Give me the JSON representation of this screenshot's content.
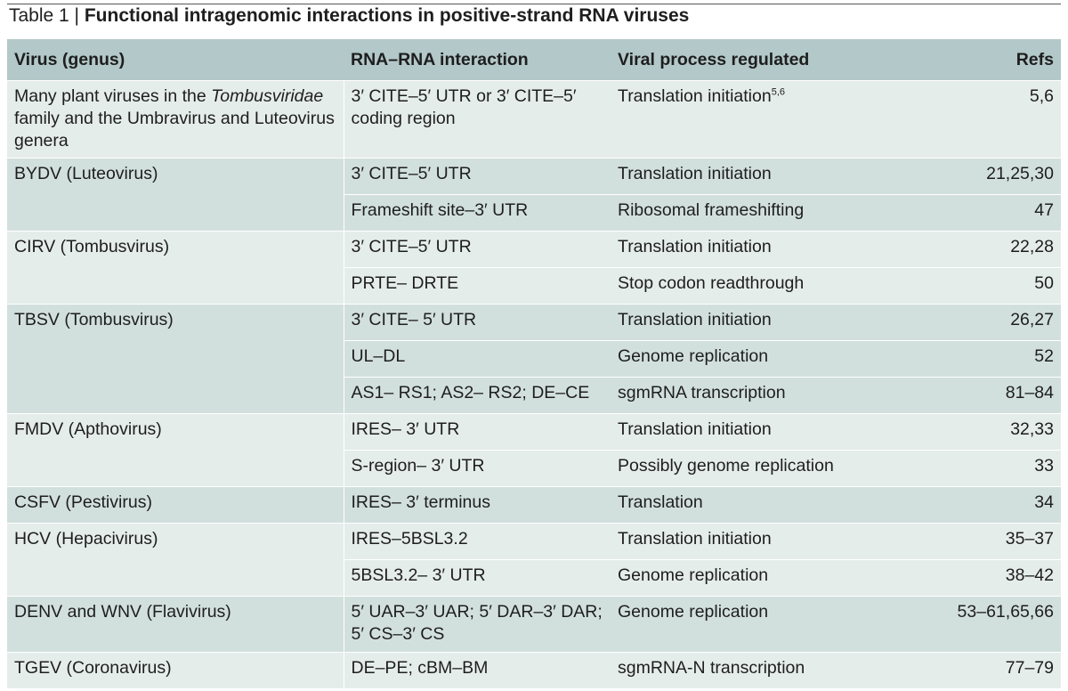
{
  "caption": {
    "label": "Table 1 | ",
    "title": "Functional intragenomic interactions in positive-strand RNA viruses"
  },
  "headers": {
    "virus": "Virus (genus)",
    "interaction": "RNA–RNA interaction",
    "process": "Viral process regulated",
    "refs": "Refs"
  },
  "groups": [
    {
      "virus_pre": "Many plant viruses in the ",
      "virus_italic": "Tombusviridae",
      "virus_post": " family and the Umbravirus and Luteovirus genera",
      "rows": [
        {
          "interaction": "3′ CITE–5′ UTR or 3′ CITE–5′ coding region",
          "process": "Translation initiation",
          "process_sup": "5,6",
          "refs": "5,6"
        }
      ]
    },
    {
      "virus": "BYDV (Luteovirus)",
      "rows": [
        {
          "interaction": "3′ CITE–5′ UTR",
          "process": "Translation initiation",
          "refs": "21,25,30"
        },
        {
          "interaction": "Frameshift site–3′ UTR",
          "process": "Ribosomal frameshifting",
          "refs": "47"
        }
      ]
    },
    {
      "virus": "CIRV (Tombusvirus)",
      "rows": [
        {
          "interaction": "3′ CITE–5′ UTR",
          "process": "Translation initiation",
          "refs": "22,28"
        },
        {
          "interaction": "PRTE– DRTE",
          "process": "Stop codon readthrough",
          "refs": "50"
        }
      ]
    },
    {
      "virus": "TBSV (Tombusvirus)",
      "rows": [
        {
          "interaction": "3′ CITE– 5′ UTR",
          "process": "Translation initiation",
          "refs": "26,27"
        },
        {
          "interaction": "UL–DL",
          "process": "Genome replication",
          "refs": "52"
        },
        {
          "interaction": "AS1– RS1; AS2– RS2; DE–CE",
          "process": "sgmRNA transcription",
          "refs": "81–84"
        }
      ]
    },
    {
      "virus": "FMDV (Apthovirus)",
      "rows": [
        {
          "interaction": "IRES– 3′ UTR",
          "process": "Translation initiation",
          "refs": "32,33"
        },
        {
          "interaction": "S-region– 3′ UTR",
          "process": "Possibly genome replication",
          "refs": "33"
        }
      ]
    },
    {
      "virus": "CSFV (Pestivirus)",
      "rows": [
        {
          "interaction": "IRES– 3′ terminus",
          "process": "Translation",
          "refs": "34"
        }
      ]
    },
    {
      "virus": "HCV (Hepacivirus)",
      "rows": [
        {
          "interaction": "IRES–5BSL3.2",
          "process": "Translation initiation",
          "refs": "35–37"
        },
        {
          "interaction": "5BSL3.2– 3′ UTR",
          "process": "Genome replication",
          "refs": "38–42"
        }
      ]
    },
    {
      "virus": "DENV and WNV (Flavivirus)",
      "rows": [
        {
          "interaction": "5′ UAR–3′ UAR; 5′ DAR–3′ DAR; 5′ CS–3′ CS",
          "process": "Genome replication",
          "refs": "53–61,65,66"
        }
      ]
    },
    {
      "virus": "TGEV (Coronavirus)",
      "rows": [
        {
          "interaction": "DE–PE; cBM–BM",
          "process": "sgmRNA-N transcription",
          "refs": "77–79"
        }
      ]
    }
  ]
}
